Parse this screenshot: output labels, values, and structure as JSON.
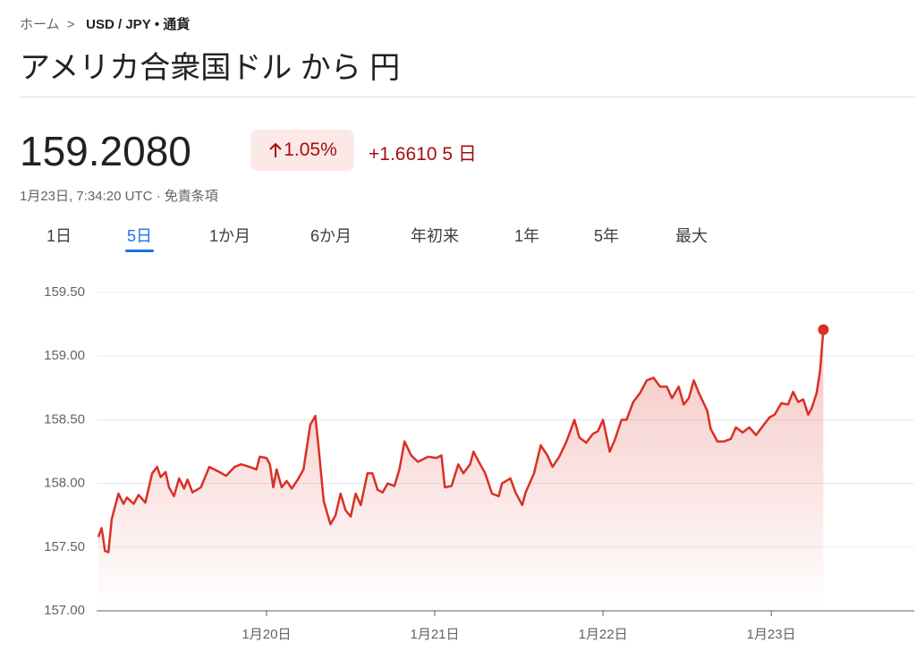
{
  "breadcrumb": {
    "home": "ホーム",
    "pair": "USD / JPY",
    "kind": "通貨"
  },
  "title": "アメリカ合衆国ドル から 円",
  "price": "159.2080",
  "change_percent": "1.05%",
  "change_value": "+1.6610",
  "change_period": "5 日",
  "timestamp": "1月23日, 7:34:20 UTC",
  "disclaimer": "免責条項",
  "tabs": [
    "1日",
    "5日",
    "1か月",
    "6か月",
    "年初来",
    "1年",
    "5年",
    "最大"
  ],
  "selected_tab": 1,
  "chart_data": {
    "type": "line",
    "color": "#d93025",
    "grid": true,
    "x": [
      19.0,
      19.02,
      19.04,
      19.06,
      19.08,
      19.12,
      19.15,
      19.17,
      19.21,
      19.24,
      19.28,
      19.32,
      19.35,
      19.37,
      19.4,
      19.42,
      19.45,
      19.48,
      19.51,
      19.53,
      19.56,
      19.61,
      19.66,
      19.72,
      19.76,
      19.81,
      19.85,
      19.9,
      19.94,
      19.96,
      20.0,
      20.02,
      20.04,
      20.06,
      20.09,
      20.12,
      20.15,
      20.19,
      20.22,
      20.26,
      20.29,
      20.31,
      20.34,
      20.38,
      20.41,
      20.44,
      20.47,
      20.5,
      20.53,
      20.56,
      20.6,
      20.63,
      20.66,
      20.69,
      20.72,
      20.76,
      20.79,
      20.82,
      20.86,
      20.9,
      20.96,
      21.01,
      21.04,
      21.06,
      21.1,
      21.14,
      21.17,
      21.21,
      21.23,
      21.27,
      21.3,
      21.34,
      21.38,
      21.4,
      21.45,
      21.48,
      21.52,
      21.54,
      21.59,
      21.63,
      21.67,
      21.7,
      21.74,
      21.78,
      21.8,
      21.83,
      21.86,
      21.9,
      21.94,
      21.97,
      22.0,
      22.04,
      22.07,
      22.11,
      22.14,
      22.18,
      22.22,
      22.26,
      22.3,
      22.34,
      22.38,
      22.41,
      22.45,
      22.48,
      22.51,
      22.54,
      22.57,
      22.62,
      22.64,
      22.68,
      22.72,
      22.76,
      22.79,
      22.83,
      22.87,
      22.91,
      22.95,
      22.99,
      23.02,
      23.06,
      23.1,
      23.13,
      23.16,
      23.19,
      23.22,
      23.24,
      23.27,
      23.29,
      23.31
    ],
    "values": [
      157.58,
      157.65,
      157.47,
      157.46,
      157.72,
      157.92,
      157.84,
      157.89,
      157.84,
      157.91,
      157.85,
      158.08,
      158.13,
      158.05,
      158.09,
      157.97,
      157.9,
      158.04,
      157.96,
      158.03,
      157.93,
      157.97,
      158.13,
      158.09,
      158.06,
      158.13,
      158.15,
      158.13,
      158.11,
      158.21,
      158.2,
      158.15,
      157.97,
      158.11,
      157.97,
      158.02,
      157.96,
      158.04,
      158.11,
      158.46,
      158.53,
      158.28,
      157.86,
      157.68,
      157.75,
      157.92,
      157.79,
      157.74,
      157.92,
      157.83,
      158.08,
      158.08,
      157.95,
      157.93,
      158.0,
      157.98,
      158.11,
      158.33,
      158.22,
      158.17,
      158.21,
      158.2,
      158.22,
      157.97,
      157.98,
      158.15,
      158.08,
      158.15,
      158.25,
      158.15,
      158.08,
      157.92,
      157.9,
      158.0,
      158.04,
      157.93,
      157.83,
      157.93,
      158.08,
      158.3,
      158.22,
      158.13,
      158.21,
      158.32,
      158.39,
      158.5,
      158.36,
      158.32,
      158.39,
      158.41,
      158.5,
      158.25,
      158.34,
      158.5,
      158.5,
      158.64,
      158.71,
      158.81,
      158.83,
      158.76,
      158.76,
      158.67,
      158.76,
      158.62,
      158.67,
      158.81,
      158.71,
      158.57,
      158.43,
      158.33,
      158.33,
      158.35,
      158.44,
      158.4,
      158.44,
      158.38,
      158.45,
      158.52,
      158.54,
      158.63,
      158.62,
      158.72,
      158.64,
      158.66,
      158.54,
      158.59,
      158.71,
      158.88,
      159.208
    ],
    "xlim": [
      18.99,
      23.85
    ],
    "xticks": [
      {
        "value": 20,
        "label": "1月20日"
      },
      {
        "value": 21,
        "label": "1月21日"
      },
      {
        "value": 22,
        "label": "1月22日"
      },
      {
        "value": 23,
        "label": "1月23日"
      }
    ],
    "ylim": [
      157.0,
      159.5
    ],
    "yticks": [
      {
        "value": 157.0,
        "label": "157.00"
      },
      {
        "value": 157.5,
        "label": "157.50"
      },
      {
        "value": 158.0,
        "label": "158.00"
      },
      {
        "value": 158.5,
        "label": "158.50"
      },
      {
        "value": 159.0,
        "label": "159.00"
      },
      {
        "value": 159.5,
        "label": "159.50"
      }
    ]
  }
}
